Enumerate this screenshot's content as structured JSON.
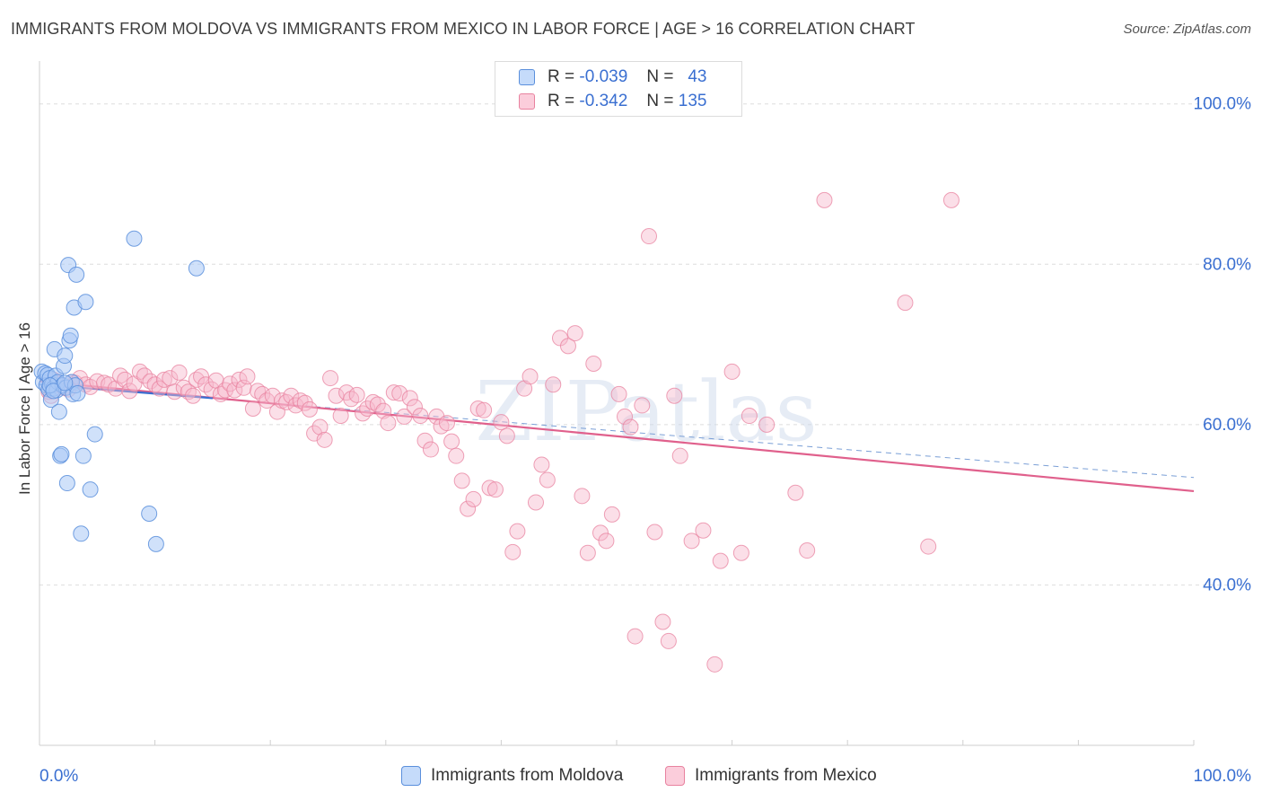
{
  "title": "IMMIGRANTS FROM MOLDOVA VS IMMIGRANTS FROM MEXICO IN LABOR FORCE | AGE > 16 CORRELATION CHART",
  "source": "Source: ZipAtlas.com",
  "watermark": "ZIPatlas",
  "colors": {
    "moldova_fill": "#aac8f5",
    "moldova_stroke": "#5a8fdc",
    "moldova_line": "#3a6fd1",
    "mexico_fill": "#f7b8cc",
    "mexico_stroke": "#e8829f",
    "mexico_line": "#e0608c",
    "axis_value": "#3a6fd1",
    "grid": "#dedede"
  },
  "legend_top": {
    "moldova": {
      "r_label": "R =",
      "r_value": "-0.039",
      "n_label": "N =",
      "n_value": "43"
    },
    "mexico": {
      "r_label": "R =",
      "r_value": "-0.342",
      "n_label": "N =",
      "n_value": "135"
    }
  },
  "legend_bottom": {
    "moldova": "Immigrants from Moldova",
    "mexico": "Immigrants from Mexico"
  },
  "chart_data": {
    "type": "scatter",
    "title": "IMMIGRANTS FROM MOLDOVA VS IMMIGRANTS FROM MEXICO IN LABOR FORCE | AGE > 16 CORRELATION CHART",
    "xlabel": "",
    "ylabel": "In Labor Force | Age > 16",
    "xlim": [
      0,
      100
    ],
    "ylim": [
      20,
      104
    ],
    "x_tick_labels": [
      "0.0%",
      "100.0%"
    ],
    "y_ticks": [
      {
        "value": 40,
        "label": "40.0%"
      },
      {
        "value": 60,
        "label": "60.0%"
      },
      {
        "value": 80,
        "label": "80.0%"
      },
      {
        "value": 100,
        "label": "100.0%"
      }
    ],
    "grid": true,
    "legend_placement": "top-center",
    "series": [
      {
        "name": "Immigrants from Moldova",
        "r": -0.039,
        "n": 43,
        "trend": {
          "x": [
            0,
            15
          ],
          "y": [
            65.0,
            63.3
          ]
        },
        "points": [
          [
            0.2,
            66.6
          ],
          [
            0.3,
            65.3
          ],
          [
            0.5,
            66.4
          ],
          [
            0.6,
            64.9
          ],
          [
            0.7,
            66.2
          ],
          [
            0.8,
            64.4
          ],
          [
            0.9,
            65.8
          ],
          [
            1.0,
            63.1
          ],
          [
            1.1,
            65.0
          ],
          [
            1.2,
            64.5
          ],
          [
            1.3,
            69.4
          ],
          [
            1.4,
            66.1
          ],
          [
            1.5,
            64.3
          ],
          [
            1.6,
            65.3
          ],
          [
            1.7,
            61.6
          ],
          [
            1.8,
            56.1
          ],
          [
            1.9,
            56.3
          ],
          [
            2.0,
            64.9
          ],
          [
            2.1,
            67.3
          ],
          [
            2.2,
            68.6
          ],
          [
            2.3,
            64.6
          ],
          [
            2.4,
            52.7
          ],
          [
            2.5,
            79.9
          ],
          [
            2.6,
            70.5
          ],
          [
            2.7,
            71.1
          ],
          [
            2.8,
            65.3
          ],
          [
            2.9,
            63.8
          ],
          [
            3.0,
            74.6
          ],
          [
            3.1,
            64.9
          ],
          [
            3.2,
            78.7
          ],
          [
            3.3,
            63.9
          ],
          [
            3.6,
            46.4
          ],
          [
            3.8,
            56.1
          ],
          [
            4.0,
            75.3
          ],
          [
            4.4,
            51.9
          ],
          [
            4.8,
            58.8
          ],
          [
            8.2,
            83.2
          ],
          [
            9.5,
            48.9
          ],
          [
            10.1,
            45.1
          ],
          [
            13.6,
            79.5
          ],
          [
            0.9,
            64.9
          ],
          [
            1.2,
            64.2
          ],
          [
            2.2,
            65.2
          ]
        ]
      },
      {
        "name": "Immigrants from Mexico",
        "r": -0.342,
        "n": 135,
        "trend": {
          "x": [
            0,
            100
          ],
          "y": [
            65.4,
            51.7
          ]
        },
        "trend_dashed": {
          "x": [
            0,
            100
          ],
          "y": [
            65.0,
            53.4
          ]
        },
        "points": [
          [
            0.8,
            64.1
          ],
          [
            1.0,
            63.6
          ],
          [
            1.2,
            65.6
          ],
          [
            1.6,
            65.1
          ],
          [
            2.1,
            64.6
          ],
          [
            2.5,
            64.4
          ],
          [
            2.8,
            65.3
          ],
          [
            3.1,
            65.2
          ],
          [
            3.5,
            65.8
          ],
          [
            4.0,
            65.0
          ],
          [
            4.4,
            64.7
          ],
          [
            5.0,
            65.4
          ],
          [
            5.6,
            65.2
          ],
          [
            6.0,
            65.0
          ],
          [
            6.6,
            64.5
          ],
          [
            7.0,
            66.1
          ],
          [
            7.4,
            65.6
          ],
          [
            7.8,
            64.2
          ],
          [
            8.2,
            65.1
          ],
          [
            8.7,
            66.6
          ],
          [
            9.1,
            66.1
          ],
          [
            9.6,
            65.4
          ],
          [
            10.0,
            65.0
          ],
          [
            10.4,
            64.5
          ],
          [
            10.8,
            65.6
          ],
          [
            11.3,
            65.8
          ],
          [
            11.7,
            64.1
          ],
          [
            12.1,
            66.5
          ],
          [
            12.5,
            64.6
          ],
          [
            12.9,
            64.1
          ],
          [
            13.3,
            63.6
          ],
          [
            13.6,
            65.6
          ],
          [
            14.0,
            66.0
          ],
          [
            14.4,
            65.0
          ],
          [
            14.9,
            64.4
          ],
          [
            15.3,
            65.5
          ],
          [
            15.7,
            63.8
          ],
          [
            16.1,
            64.3
          ],
          [
            16.5,
            65.1
          ],
          [
            16.9,
            64.3
          ],
          [
            17.3,
            65.6
          ],
          [
            17.7,
            64.6
          ],
          [
            18.0,
            66.0
          ],
          [
            18.5,
            62.0
          ],
          [
            18.9,
            64.2
          ],
          [
            19.3,
            63.8
          ],
          [
            19.7,
            63.0
          ],
          [
            20.2,
            63.6
          ],
          [
            20.6,
            61.6
          ],
          [
            21.0,
            63.0
          ],
          [
            21.4,
            62.8
          ],
          [
            21.8,
            63.6
          ],
          [
            22.2,
            62.4
          ],
          [
            22.6,
            63.0
          ],
          [
            23.0,
            62.7
          ],
          [
            23.4,
            61.9
          ],
          [
            23.8,
            58.9
          ],
          [
            24.3,
            59.7
          ],
          [
            24.7,
            58.1
          ],
          [
            25.2,
            65.8
          ],
          [
            25.7,
            63.6
          ],
          [
            26.1,
            61.1
          ],
          [
            26.6,
            64.0
          ],
          [
            27.0,
            63.2
          ],
          [
            27.5,
            63.7
          ],
          [
            28.0,
            61.4
          ],
          [
            28.4,
            62.0
          ],
          [
            28.9,
            62.8
          ],
          [
            29.3,
            62.5
          ],
          [
            29.8,
            61.7
          ],
          [
            30.2,
            60.2
          ],
          [
            30.7,
            64.0
          ],
          [
            31.2,
            63.9
          ],
          [
            31.6,
            61.0
          ],
          [
            32.1,
            63.3
          ],
          [
            32.5,
            62.2
          ],
          [
            33.0,
            61.1
          ],
          [
            33.4,
            58.0
          ],
          [
            33.9,
            56.9
          ],
          [
            34.4,
            61.0
          ],
          [
            34.8,
            59.8
          ],
          [
            35.3,
            60.2
          ],
          [
            35.7,
            57.9
          ],
          [
            36.1,
            56.1
          ],
          [
            36.6,
            53.0
          ],
          [
            37.1,
            49.5
          ],
          [
            37.6,
            50.7
          ],
          [
            38.0,
            62.0
          ],
          [
            38.5,
            61.8
          ],
          [
            39.0,
            52.1
          ],
          [
            39.5,
            51.9
          ],
          [
            40.0,
            60.3
          ],
          [
            40.5,
            58.6
          ],
          [
            41.0,
            44.1
          ],
          [
            41.4,
            46.7
          ],
          [
            42.0,
            64.5
          ],
          [
            42.5,
            66.0
          ],
          [
            43.0,
            50.3
          ],
          [
            43.5,
            55.0
          ],
          [
            44.0,
            53.1
          ],
          [
            44.5,
            65.0
          ],
          [
            45.1,
            70.8
          ],
          [
            45.8,
            69.8
          ],
          [
            46.4,
            71.4
          ],
          [
            47.0,
            51.1
          ],
          [
            47.5,
            44.0
          ],
          [
            48.0,
            67.6
          ],
          [
            48.6,
            46.5
          ],
          [
            49.1,
            45.5
          ],
          [
            49.6,
            48.8
          ],
          [
            50.2,
            63.8
          ],
          [
            50.7,
            61.0
          ],
          [
            51.2,
            59.7
          ],
          [
            51.6,
            33.6
          ],
          [
            52.2,
            62.4
          ],
          [
            52.8,
            83.5
          ],
          [
            53.3,
            46.6
          ],
          [
            54.0,
            35.4
          ],
          [
            54.5,
            33.0
          ],
          [
            55.0,
            63.6
          ],
          [
            55.5,
            56.1
          ],
          [
            56.5,
            45.5
          ],
          [
            57.5,
            46.8
          ],
          [
            58.5,
            30.1
          ],
          [
            59.0,
            43.0
          ],
          [
            60.0,
            66.6
          ],
          [
            60.8,
            44.0
          ],
          [
            61.5,
            61.1
          ],
          [
            63.0,
            60.0
          ],
          [
            65.5,
            51.5
          ],
          [
            66.5,
            44.3
          ],
          [
            68.0,
            88.0
          ],
          [
            75.0,
            75.2
          ],
          [
            77.0,
            44.8
          ],
          [
            79.0,
            88.0
          ]
        ]
      }
    ]
  }
}
